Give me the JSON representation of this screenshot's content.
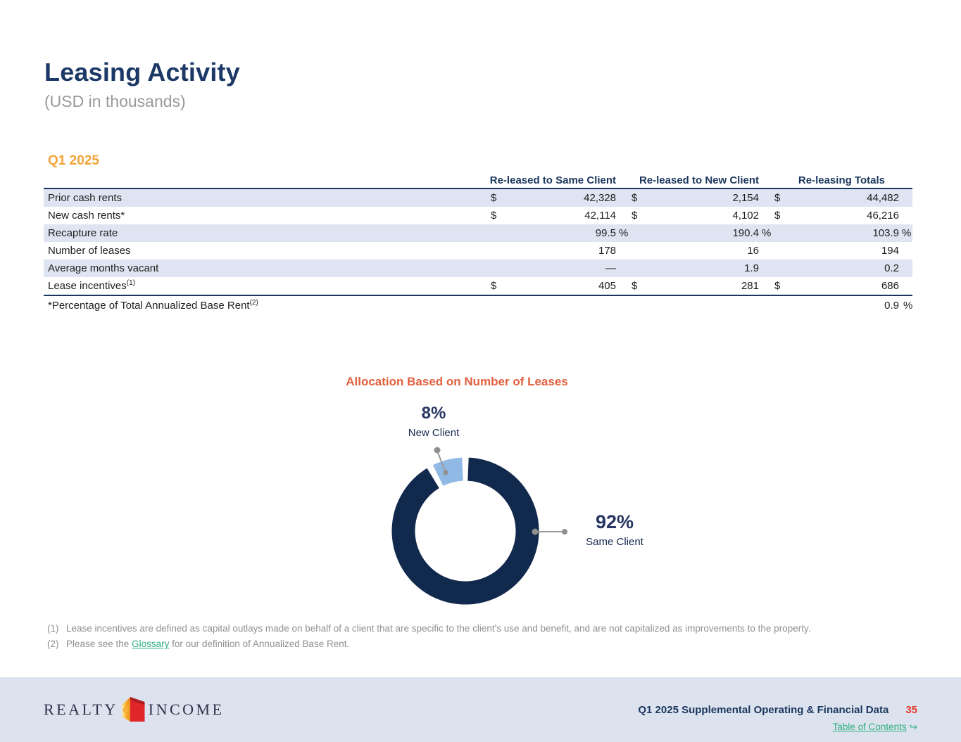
{
  "page": {
    "title": "Leasing Activity",
    "subtitle": "(USD in thousands)",
    "section_label": "Q1 2025"
  },
  "table": {
    "headers": [
      "Re-leased to Same Client",
      "Re-leased to New Client",
      "Re-leasing Totals"
    ],
    "rows": [
      {
        "label": "Prior cash rents",
        "sup": "",
        "cells": [
          [
            "$",
            "42,328",
            ""
          ],
          [
            "$",
            "2,154",
            ""
          ],
          [
            "$",
            "44,482",
            ""
          ]
        ]
      },
      {
        "label": "New cash rents*",
        "sup": "",
        "cells": [
          [
            "$",
            "42,114",
            ""
          ],
          [
            "$",
            "4,102",
            ""
          ],
          [
            "$",
            "46,216",
            ""
          ]
        ]
      },
      {
        "label": "Recapture rate",
        "sup": "",
        "cells": [
          [
            "",
            "99.5",
            "%"
          ],
          [
            "",
            "190.4",
            "%"
          ],
          [
            "",
            "103.9",
            "%"
          ]
        ]
      },
      {
        "label": "Number of leases",
        "sup": "",
        "cells": [
          [
            "",
            "178",
            ""
          ],
          [
            "",
            "16",
            ""
          ],
          [
            "",
            "194",
            ""
          ]
        ]
      },
      {
        "label": "Average months vacant",
        "sup": "",
        "cells": [
          [
            "",
            "—",
            ""
          ],
          [
            "",
            "1.9",
            ""
          ],
          [
            "",
            "0.2",
            ""
          ]
        ]
      },
      {
        "label": "Lease incentives",
        "sup": "(1)",
        "cells": [
          [
            "$",
            "405",
            ""
          ],
          [
            "$",
            "281",
            ""
          ],
          [
            "$",
            "686",
            ""
          ]
        ]
      }
    ],
    "footer_row": {
      "label": "*Percentage of Total Annualized Base Rent",
      "sup": "(2)",
      "value": "0.9",
      "unit": "%"
    }
  },
  "chart_data": {
    "type": "pie",
    "subtype": "donut",
    "title": "Allocation Based on Number of Leases",
    "legend_position": "none",
    "slices": [
      {
        "label": "Same Client",
        "value_pct": 92,
        "color": "#12294e"
      },
      {
        "label": "New Client",
        "value_pct": 8,
        "color": "#90b9e5"
      }
    ],
    "labels": {
      "new_client_pct": "8%",
      "new_client_name": "New Client",
      "same_client_pct": "92%",
      "same_client_name": "Same Client"
    }
  },
  "footnotes": {
    "fn1_num": "(1)",
    "fn1_text": "Lease incentives are defined as capital outlays made on behalf of a client that are specific to the client's use and benefit, and are not capitalized as improvements to the property.",
    "fn2_num": "(2)",
    "fn2_before": "Please see the ",
    "fn2_link": "Glossary",
    "fn2_after": " for our definition of Annualized Base Rent."
  },
  "footer": {
    "logo_realty": "REALTY",
    "logo_income": "INCOME",
    "doc_title": "Q1 2025 Supplemental Operating & Financial Data",
    "page_number": "35",
    "toc_link": "Table of Contents",
    "toc_arrow": "↪"
  },
  "colors": {
    "title_navy": "#1b3866",
    "header_navy": "#1b365d",
    "section_orange": "#f2a43b",
    "chart_title_coral": "#e2603e",
    "donut_dark_navy": "#12294e",
    "donut_light_blue": "#90b9e5",
    "table_stripe": "#dee4f1",
    "footer_background": "#dce3ef",
    "link_green": "#2fae7f",
    "page_number_red": "#e4392f",
    "footnote_gray": "#8e9093",
    "leader_line_gray": "#9b9b9b"
  }
}
